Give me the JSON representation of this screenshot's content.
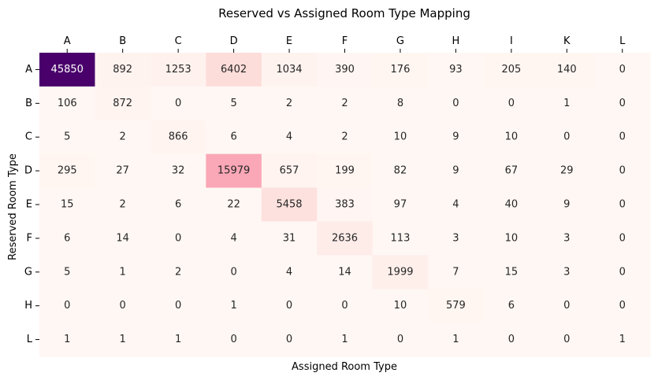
{
  "chart_data": {
    "type": "heatmap",
    "title": "Reserved vs Assigned Room Type Mapping",
    "xlabel": "Assigned Room Type",
    "ylabel": "Reserved Room Type",
    "x_categories": [
      "A",
      "B",
      "C",
      "D",
      "E",
      "F",
      "G",
      "H",
      "I",
      "K",
      "L"
    ],
    "y_categories": [
      "A",
      "B",
      "C",
      "D",
      "E",
      "F",
      "G",
      "H",
      "L"
    ],
    "x_axis_position": "top",
    "colormap": "RdPu",
    "color_range": [
      0,
      45850
    ],
    "colorbar": false,
    "values": [
      [
        45850,
        892,
        1253,
        6402,
        1034,
        390,
        176,
        93,
        205,
        140,
        0
      ],
      [
        106,
        872,
        0,
        5,
        2,
        2,
        8,
        0,
        0,
        1,
        0
      ],
      [
        5,
        2,
        866,
        6,
        4,
        2,
        10,
        9,
        10,
        0,
        0
      ],
      [
        295,
        27,
        32,
        15979,
        657,
        199,
        82,
        9,
        67,
        29,
        0
      ],
      [
        15,
        2,
        6,
        22,
        5458,
        383,
        97,
        4,
        40,
        9,
        0
      ],
      [
        6,
        14,
        0,
        4,
        31,
        2636,
        113,
        3,
        10,
        3,
        0
      ],
      [
        5,
        1,
        2,
        0,
        4,
        14,
        1999,
        7,
        15,
        3,
        0
      ],
      [
        0,
        0,
        0,
        1,
        0,
        0,
        10,
        579,
        6,
        0,
        0
      ],
      [
        1,
        1,
        1,
        0,
        0,
        1,
        0,
        1,
        0,
        0,
        1
      ]
    ]
  }
}
